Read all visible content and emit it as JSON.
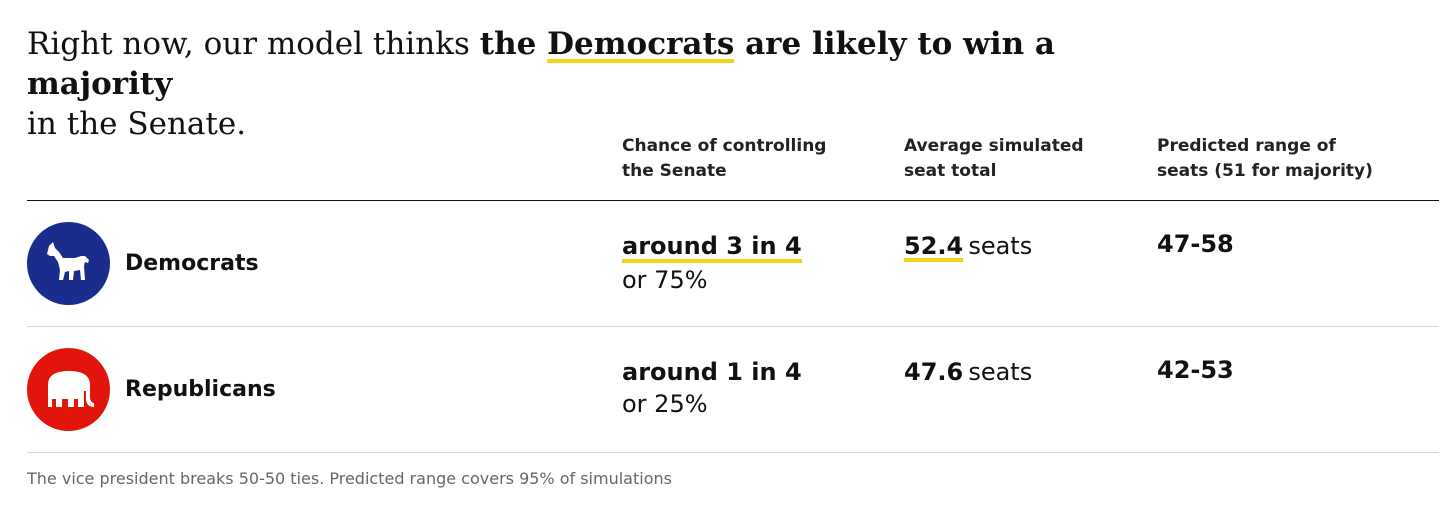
{
  "headline": {
    "prefix": "Right now, our model thinks ",
    "bold_before": "the ",
    "party": "Democrats",
    "bold_after": " are likely to win a majority",
    "suffix": "in the Senate."
  },
  "columns": {
    "chance": [
      "Chance of controlling",
      "the Senate"
    ],
    "average": [
      "Average simulated",
      "seat total"
    ],
    "range": [
      "Predicted range of",
      "seats (51 for majority)"
    ]
  },
  "rows": [
    {
      "party": "Democrats",
      "icon": "donkey-icon",
      "color": "#1a2d8c",
      "chance_main": "around 3 in 4",
      "chance_sub": "or 75%",
      "avg_seats": "52.4",
      "seats_unit": "seats",
      "range": "47-58"
    },
    {
      "party": "Republicans",
      "icon": "elephant-icon",
      "color": "#e2150d",
      "chance_main": "around 1 in 4",
      "chance_sub": "or 25%",
      "avg_seats": "47.6",
      "seats_unit": "seats",
      "range": "42-53"
    }
  ],
  "footnote": "The vice president breaks 50-50 ties. Predicted range covers 95% of simulations",
  "accent_color": "#f5d21a"
}
